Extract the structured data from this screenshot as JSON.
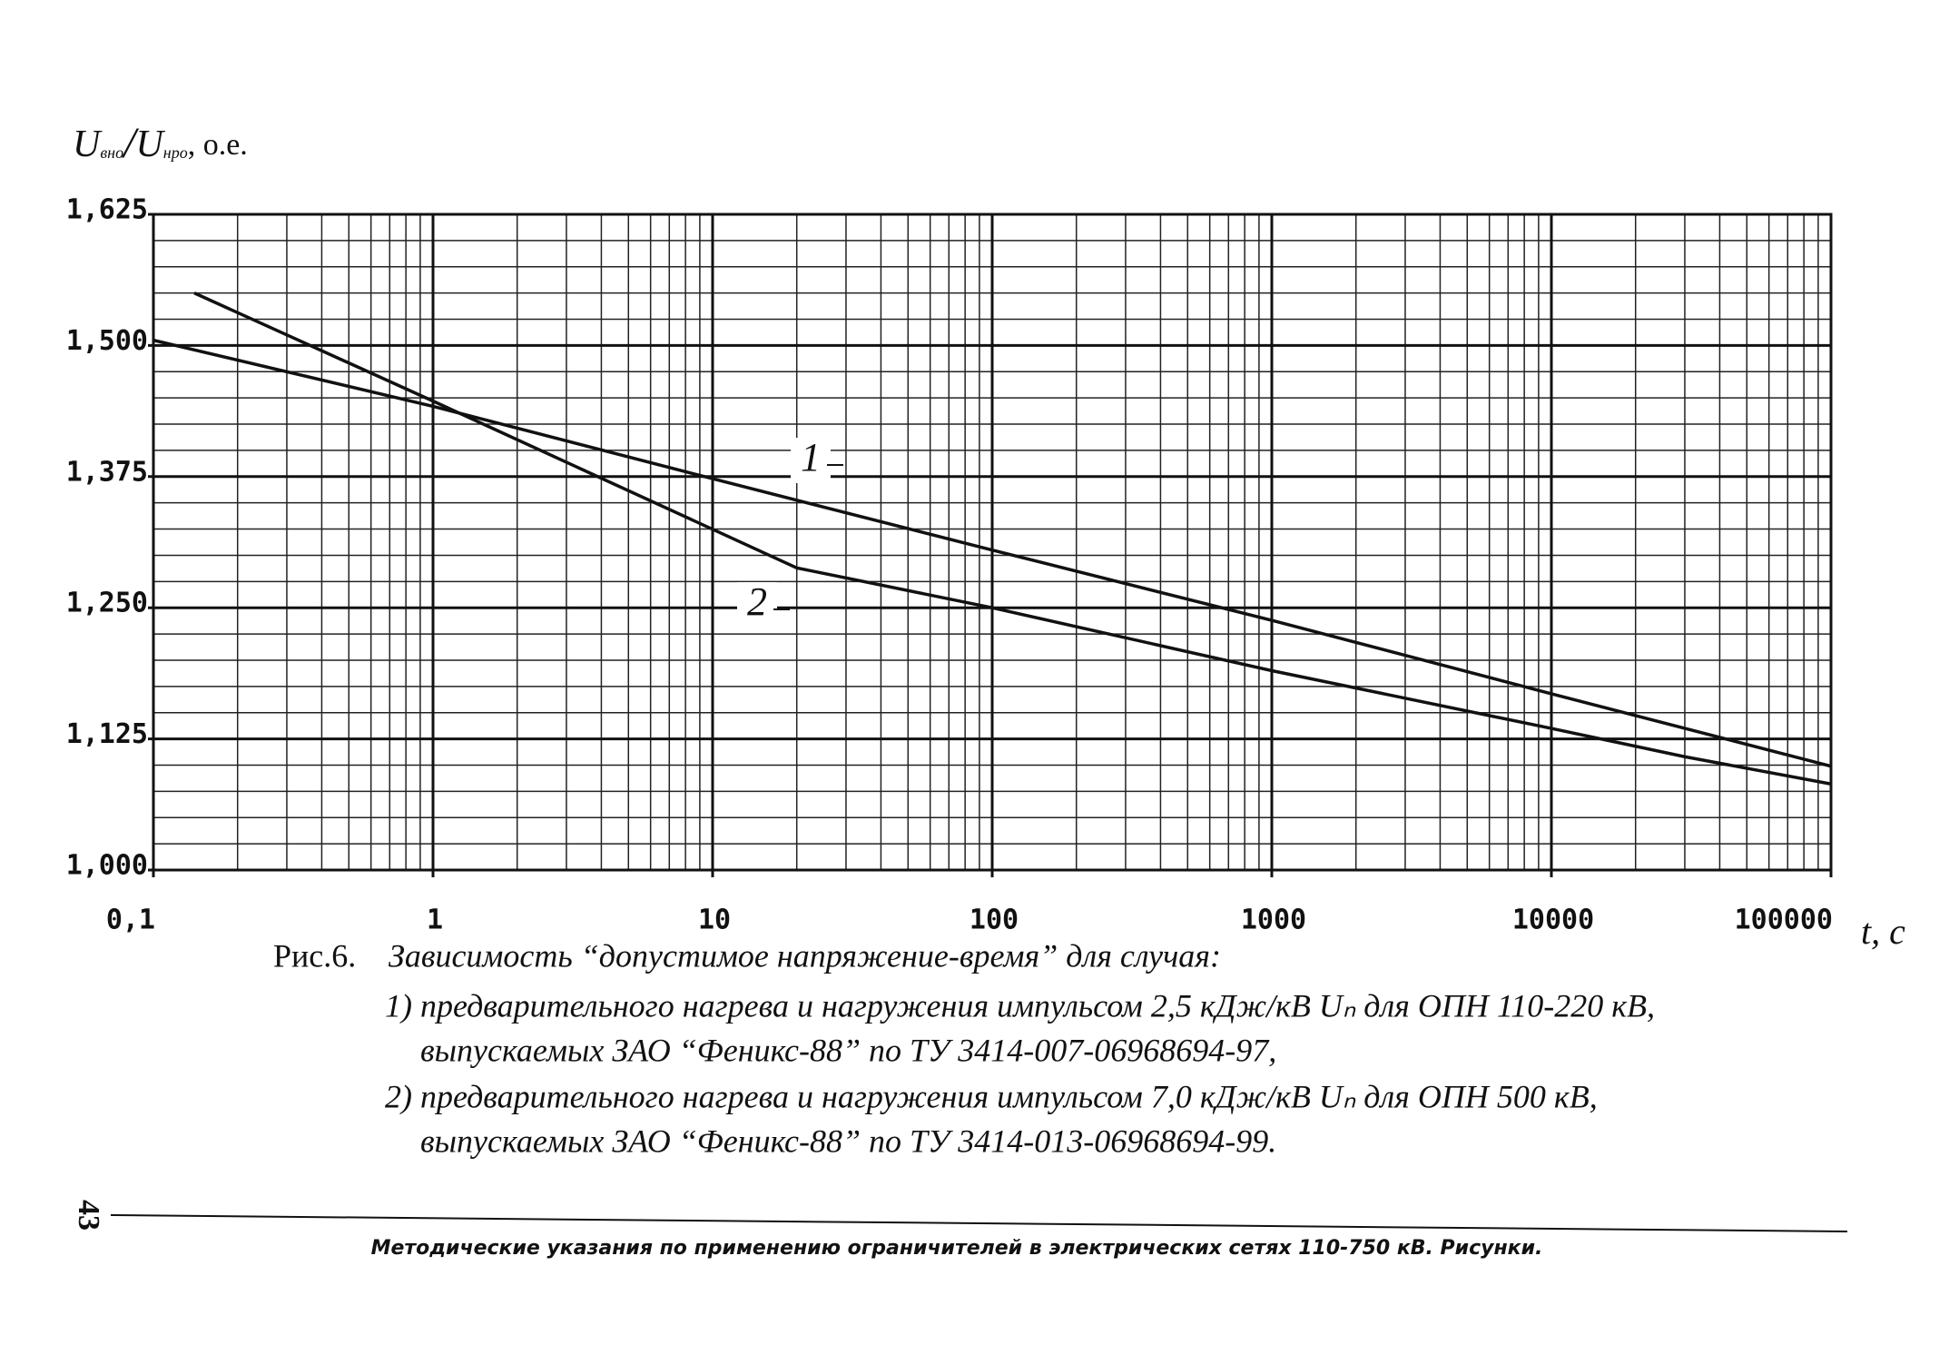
{
  "chart_data": {
    "type": "line",
    "log_x": true,
    "color": "#111111",
    "y_label": {
      "u1": "U",
      "sub1": "вно",
      "sep": "/",
      "u2": "U",
      "sub2": "нро",
      "unit": ", о.е."
    },
    "x_label": "t, c",
    "xlim": [
      0.1,
      100000
    ],
    "xticks": [
      {
        "value": 0.1,
        "label": "0,1"
      },
      1,
      10,
      100,
      1000,
      10000,
      100000
    ],
    "x_grid": [
      0.2,
      0.3,
      0.4,
      0.5,
      0.6,
      0.7,
      0.8,
      0.9,
      2,
      3,
      4,
      5,
      6,
      7,
      8,
      9,
      20,
      30,
      40,
      50,
      60,
      70,
      80,
      90,
      200,
      300,
      400,
      500,
      600,
      700,
      800,
      900,
      2000,
      3000,
      4000,
      5000,
      6000,
      7000,
      8000,
      9000,
      20000,
      30000,
      40000,
      50000,
      60000,
      70000,
      80000,
      90000
    ],
    "ylim": [
      1.0,
      1.625
    ],
    "yticks": [
      {
        "value": 1.0,
        "label": "1,000"
      },
      {
        "value": 1.125,
        "label": "1,125"
      },
      {
        "value": 1.25,
        "label": "1,250"
      },
      {
        "value": 1.375,
        "label": "1,375"
      },
      {
        "value": 1.5,
        "label": "1,500"
      },
      {
        "value": 1.625,
        "label": "1,625"
      }
    ],
    "y_grid": [
      1.025,
      1.05,
      1.075,
      1.1,
      1.15,
      1.175,
      1.2,
      1.225,
      1.275,
      1.3,
      1.325,
      1.35,
      1.4,
      1.425,
      1.45,
      1.475,
      1.525,
      1.55,
      1.575,
      1.6
    ],
    "series": [
      {
        "name": "1",
        "x": [
          0.1,
          1,
          10,
          100,
          1000,
          10000,
          100000
        ],
        "values": [
          1.505,
          1.442,
          1.373,
          1.305,
          1.238,
          1.168,
          1.099
        ]
      },
      {
        "name": "2",
        "x": [
          0.14,
          1,
          20,
          100,
          1000,
          10000,
          30000,
          100000
        ],
        "values": [
          1.55,
          1.447,
          1.288,
          1.25,
          1.19,
          1.135,
          1.108,
          1.082
        ]
      }
    ],
    "caption": {
      "fig": "Рис.6.",
      "title": "Зависимость “допустимое напряжение-время” для случая:",
      "lines": [
        "1) предварительного нагрева и нагружения импульсом 2,5 кДж/кВ Uₙ для ОПН 110-220 кВ,",
        "выпускаемых ЗАО “Феникс-88” по ТУ 3414-007-06968694-97,",
        "2) предварительного нагрева и нагружения импульсом 7,0 кДж/кВ Uₙ для ОПН 500 кВ,",
        "выпускаемых ЗАО “Феникс-88” по ТУ 3414-013-06968694-99."
      ]
    },
    "page_number": "43",
    "footer": "Методические указания по применению ограничителей  в электрических сетях 110-750 кВ. Рисунки."
  }
}
